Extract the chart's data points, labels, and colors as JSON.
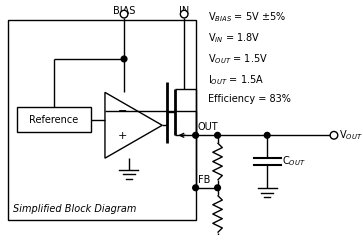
{
  "background": "#ffffff",
  "line_color": "#000000",
  "fontsize": 7.0,
  "box_label": "Simplified Block Diagram",
  "specs": [
    "V$_{BIAS}$ = 5V ±5%",
    "V$_{IN}$ = 1.8V",
    "V$_{OUT}$ = 1.5V",
    "I$_{OUT}$ = 1.5A",
    "Efficiency = 83%"
  ]
}
